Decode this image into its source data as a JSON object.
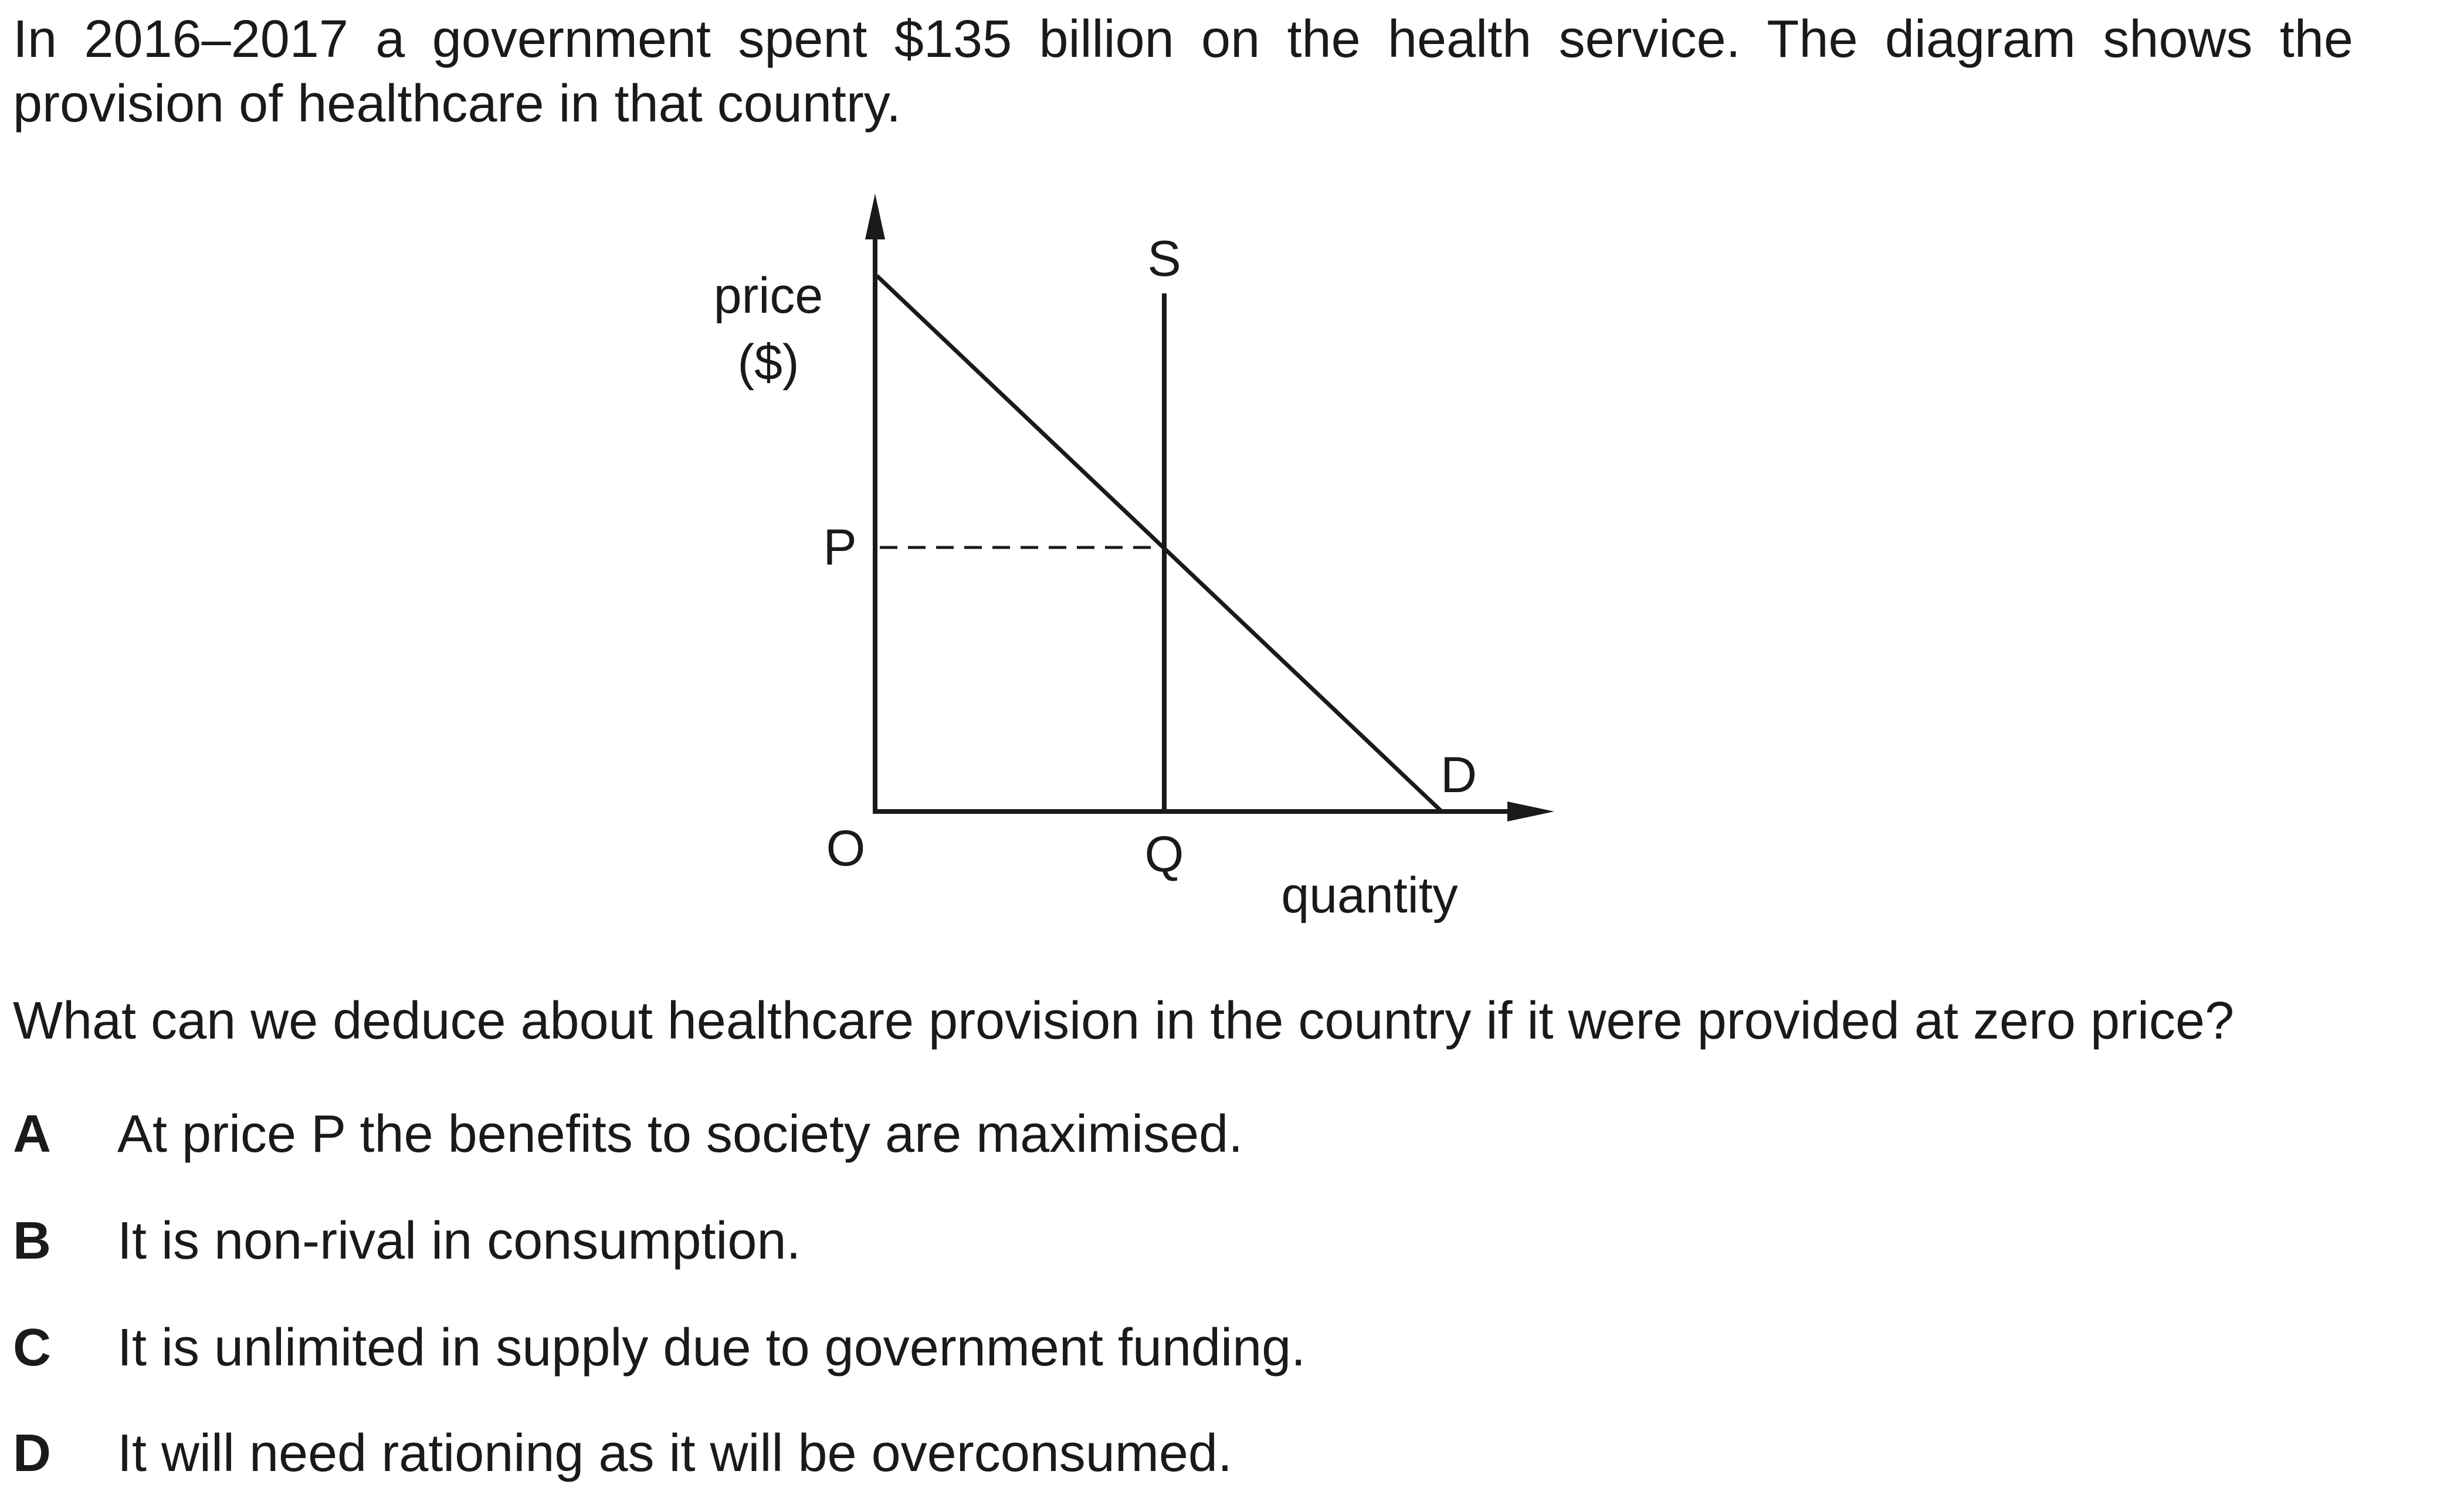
{
  "intro": "In 2016–2017 a government spent $135 billion on the health service. The diagram shows the provision of healthcare in that country.",
  "diagram": {
    "y_axis_label_line1": "price",
    "y_axis_label_line2": "($)",
    "x_axis_label": "quantity",
    "origin_label": "O",
    "price_label": "P",
    "quantity_label": "Q",
    "supply_label": "S",
    "demand_label": "D"
  },
  "question": "What can we deduce about healthcare provision in the country if it were provided at zero price?",
  "options": [
    {
      "letter": "A",
      "text": "At price P the benefits to society are maximised."
    },
    {
      "letter": "B",
      "text": "It is non-rival in consumption."
    },
    {
      "letter": "C",
      "text": "It is unlimited in supply due to government funding."
    },
    {
      "letter": "D",
      "text": "It will need rationing as it will be overconsumed."
    }
  ]
}
